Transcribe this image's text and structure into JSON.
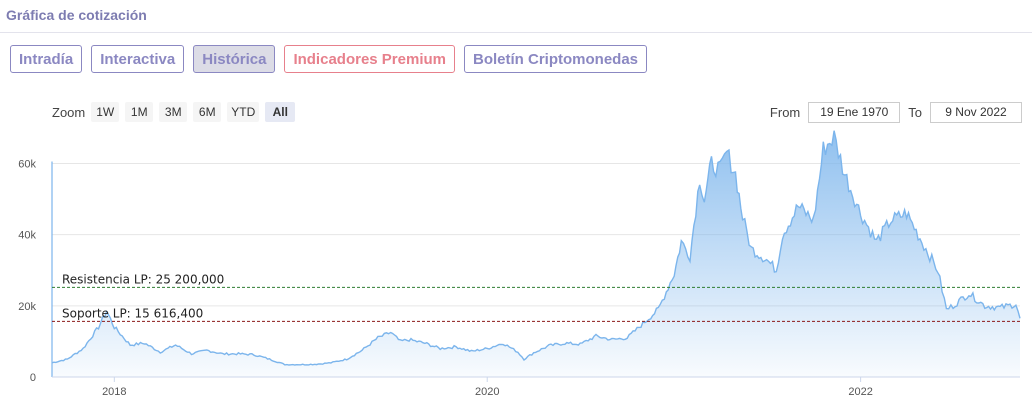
{
  "header": {
    "title": "Gráfica de cotización"
  },
  "tabs": [
    {
      "label": "Intradía",
      "active": false
    },
    {
      "label": "Interactiva",
      "active": false
    },
    {
      "label": "Histórica",
      "active": true
    },
    {
      "label": "Indicadores Premium",
      "active": false
    },
    {
      "label": "Boletín Criptomonedas",
      "active": false
    }
  ],
  "zoom": {
    "label": "Zoom",
    "buttons": [
      "1W",
      "1M",
      "3M",
      "6M",
      "YTD",
      "All"
    ],
    "active": "All"
  },
  "range": {
    "from_label": "From",
    "from_value": "19 Ene 1970",
    "to_label": "To",
    "to_value": "9 Nov 2022"
  },
  "chart_data": {
    "type": "area",
    "x_ticks": [
      "2018",
      "2020",
      "2022"
    ],
    "y_ticks": [
      0,
      20000,
      40000,
      60000
    ],
    "y_tick_labels": [
      "0",
      "20k",
      "40k",
      "60k"
    ],
    "ylim": [
      0,
      68000
    ],
    "xlim": [
      "2017-09",
      "2022-11"
    ],
    "grid": true,
    "series": [
      {
        "color": "#7cb5ec",
        "points": [
          [
            "2017-09-01",
            4000
          ],
          [
            "2017-10-01",
            5000
          ],
          [
            "2017-11-01",
            8000
          ],
          [
            "2017-12-01",
            14000
          ],
          [
            "2017-12-17",
            18500
          ],
          [
            "2018-01-01",
            14000
          ],
          [
            "2018-02-01",
            9000
          ],
          [
            "2018-03-01",
            9500
          ],
          [
            "2018-04-01",
            7000
          ],
          [
            "2018-05-01",
            9000
          ],
          [
            "2018-06-01",
            6500
          ],
          [
            "2018-07-01",
            7500
          ],
          [
            "2018-08-01",
            6500
          ],
          [
            "2018-09-01",
            6500
          ],
          [
            "2018-10-01",
            6300
          ],
          [
            "2018-11-01",
            5000
          ],
          [
            "2018-12-01",
            3500
          ],
          [
            "2019-01-01",
            3500
          ],
          [
            "2019-02-01",
            3600
          ],
          [
            "2019-03-01",
            4000
          ],
          [
            "2019-04-01",
            5000
          ],
          [
            "2019-05-01",
            7500
          ],
          [
            "2019-06-01",
            11000
          ],
          [
            "2019-06-26",
            12500
          ],
          [
            "2019-07-15",
            10000
          ],
          [
            "2019-08-01",
            10500
          ],
          [
            "2019-09-01",
            9500
          ],
          [
            "2019-10-01",
            8000
          ],
          [
            "2019-11-01",
            8500
          ],
          [
            "2019-12-01",
            7200
          ],
          [
            "2020-01-01",
            8000
          ],
          [
            "2020-02-01",
            9500
          ],
          [
            "2020-03-01",
            7000
          ],
          [
            "2020-03-13",
            5000
          ],
          [
            "2020-04-01",
            6800
          ],
          [
            "2020-05-01",
            8800
          ],
          [
            "2020-06-01",
            9500
          ],
          [
            "2020-07-01",
            9200
          ],
          [
            "2020-08-01",
            11500
          ],
          [
            "2020-09-01",
            10500
          ],
          [
            "2020-10-01",
            11000
          ],
          [
            "2020-11-01",
            15000
          ],
          [
            "2020-12-01",
            19000
          ],
          [
            "2021-01-01",
            29000
          ],
          [
            "2021-01-15",
            38000
          ],
          [
            "2021-02-01",
            34000
          ],
          [
            "2021-02-20",
            56000
          ],
          [
            "2021-03-01",
            50000
          ],
          [
            "2021-03-15",
            60000
          ],
          [
            "2021-04-01",
            58000
          ],
          [
            "2021-04-14",
            63000
          ],
          [
            "2021-05-01",
            57000
          ],
          [
            "2021-05-15",
            45000
          ],
          [
            "2021-06-01",
            36000
          ],
          [
            "2021-07-01",
            33000
          ],
          [
            "2021-07-20",
            30000
          ],
          [
            "2021-08-01",
            40000
          ],
          [
            "2021-09-01",
            48000
          ],
          [
            "2021-10-01",
            44000
          ],
          [
            "2021-10-20",
            64000
          ],
          [
            "2021-11-10",
            67500
          ],
          [
            "2021-12-01",
            57000
          ],
          [
            "2022-01-01",
            46000
          ],
          [
            "2022-02-01",
            38000
          ],
          [
            "2022-03-01",
            44000
          ],
          [
            "2022-04-01",
            46000
          ],
          [
            "2022-05-01",
            38000
          ],
          [
            "2022-06-01",
            30000
          ],
          [
            "2022-06-18",
            19000
          ],
          [
            "2022-07-01",
            20000
          ],
          [
            "2022-08-01",
            23500
          ],
          [
            "2022-09-01",
            20000
          ],
          [
            "2022-10-01",
            19500
          ],
          [
            "2022-11-01",
            20500
          ],
          [
            "2022-11-09",
            16500
          ]
        ]
      }
    ],
    "annotations": [
      {
        "label": "Resistencia LP: 25 200,000",
        "value": 25200,
        "color": "#2e7d32"
      },
      {
        "label": "Soporte LP: 15 616,400",
        "value": 15616,
        "color": "#8b1a1a"
      }
    ]
  }
}
